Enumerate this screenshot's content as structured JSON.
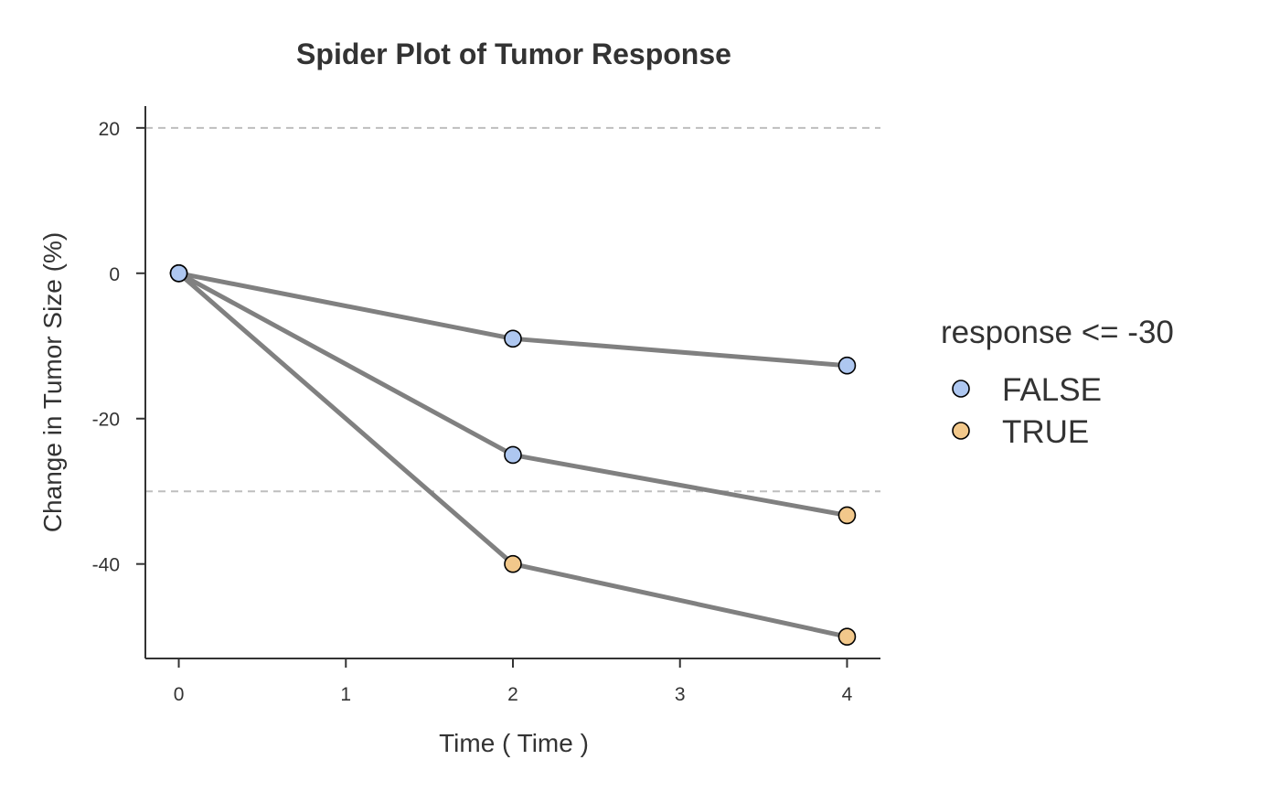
{
  "chart_data": {
    "type": "line",
    "title": "Spider Plot of Tumor Response",
    "xlabel": "Time ( Time )",
    "ylabel": "Change in Tumor Size (%)",
    "xlim": [
      -0.2,
      4.2
    ],
    "ylim": [
      -53,
      23
    ],
    "x_ticks": [
      0,
      1,
      2,
      3,
      4
    ],
    "y_ticks": [
      20,
      0,
      -20,
      -40
    ],
    "reference_lines": [
      20,
      -30
    ],
    "grid": false,
    "line_color": "#808080",
    "series": [
      {
        "points": [
          {
            "x": 0,
            "y": 0,
            "response": false
          },
          {
            "x": 2,
            "y": -9,
            "response": false
          },
          {
            "x": 4,
            "y": -12.7,
            "response": false
          }
        ]
      },
      {
        "points": [
          {
            "x": 0,
            "y": 0,
            "response": false
          },
          {
            "x": 2,
            "y": -25,
            "response": false
          },
          {
            "x": 4,
            "y": -33.3,
            "response": true
          }
        ]
      },
      {
        "points": [
          {
            "x": 0,
            "y": 0,
            "response": false
          },
          {
            "x": 2,
            "y": -40,
            "response": true
          },
          {
            "x": 4,
            "y": -50,
            "response": true
          }
        ]
      }
    ],
    "legend": {
      "title": "response <= -30",
      "placement": "right",
      "entries": [
        {
          "label": "FALSE",
          "color": "#AEC7F0"
        },
        {
          "label": "TRUE",
          "color": "#F2C88B"
        }
      ]
    }
  }
}
